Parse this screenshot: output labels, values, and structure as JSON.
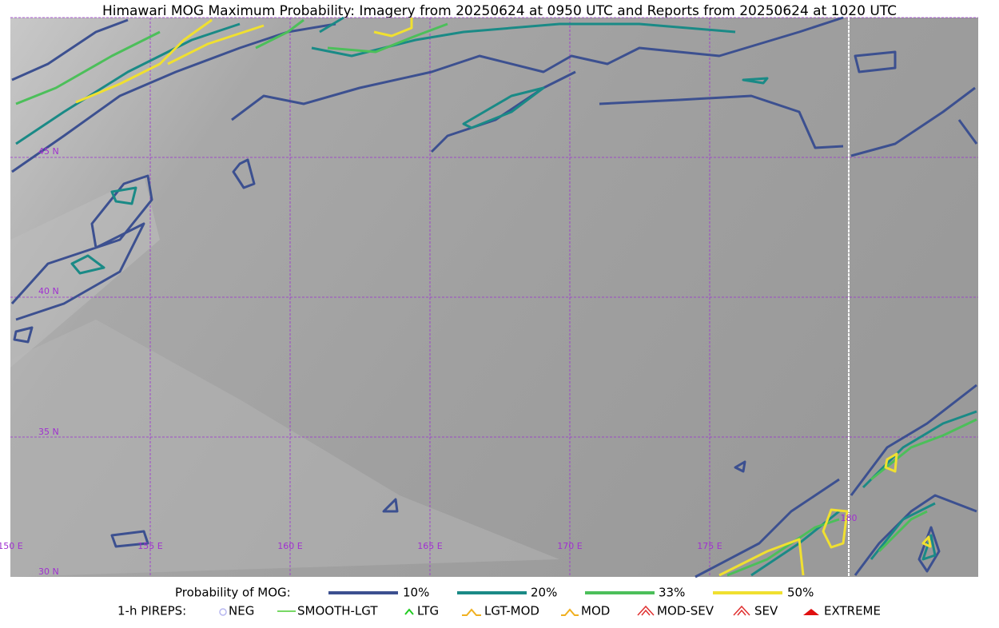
{
  "title": "Himawari MOG Maximum Probability: Imagery from 20250624 at 0950 UTC and Reports from 20250624 at 1020 UTC",
  "map": {
    "lat_labels": [
      "45 N",
      "40 N",
      "35 N",
      "30 N"
    ],
    "lon_labels": [
      "150 E",
      "155 E",
      "160 E",
      "165 E",
      "170 E",
      "175 E",
      "180"
    ]
  },
  "legend": {
    "probability_title": "Probability of MOG:",
    "probability_levels": [
      "10%",
      "20%",
      "33%",
      "50%"
    ],
    "pireps_title": "1-h PIREPS:",
    "pireps": [
      "NEG",
      "SMOOTH-LGT",
      "LTG",
      "LGT-MOD",
      "MOD",
      "MOD-SEV",
      "SEV",
      "EXTREME"
    ]
  }
}
